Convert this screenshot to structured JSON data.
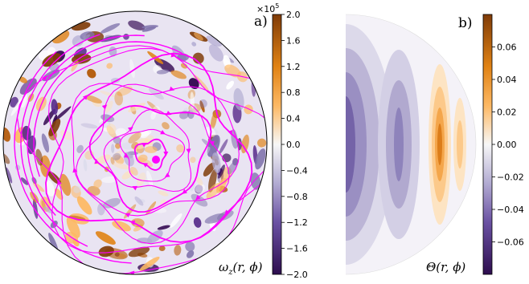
{
  "chart_data": [
    {
      "type": "heatmap",
      "panel_label": "a)",
      "field_label": "ωz(r, ϕ)",
      "colorbar": {
        "multiplier": "×10",
        "multiplier_exp": "5",
        "range": [
          -2.0,
          2.0
        ],
        "ticks": [
          {
            "value": 2.0,
            "label": "2.0"
          },
          {
            "value": 1.6,
            "label": "1.6"
          },
          {
            "value": 1.2,
            "label": "1.2"
          },
          {
            "value": 0.8,
            "label": "0.8"
          },
          {
            "value": 0.4,
            "label": "0.4"
          },
          {
            "value": 0.0,
            "label": "0.0"
          },
          {
            "value": -0.4,
            "label": "−0.4"
          },
          {
            "value": -0.8,
            "label": "−0.8"
          },
          {
            "value": -1.2,
            "label": "−1.2"
          },
          {
            "value": -1.6,
            "label": "−1.6"
          },
          {
            "value": -2.0,
            "label": "−2.0"
          }
        ]
      },
      "overlay": "streamlines",
      "colors": {
        "negative": "#2d0d4e",
        "zero": "#f7f7f7",
        "positive": "#7f3b08",
        "streamline": "#ff00ff"
      }
    },
    {
      "type": "heatmap",
      "panel_label": "b)",
      "field_label": "Θ(r, ϕ)",
      "colorbar": {
        "range": [
          -0.08,
          0.08
        ],
        "ticks": [
          {
            "value": 0.06,
            "label": "0.06"
          },
          {
            "value": 0.04,
            "label": "0.04"
          },
          {
            "value": 0.02,
            "label": "0.02"
          },
          {
            "value": 0.0,
            "label": "0.00"
          },
          {
            "value": -0.02,
            "label": "−0.02"
          },
          {
            "value": -0.04,
            "label": "−0.04"
          },
          {
            "value": -0.06,
            "label": "−0.06"
          }
        ]
      },
      "colors": {
        "negative": "#2d0d4e",
        "zero": "#f7f7f7",
        "positive": "#7f3b08"
      }
    }
  ]
}
